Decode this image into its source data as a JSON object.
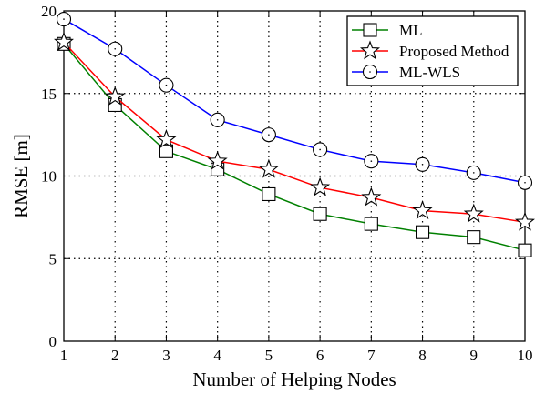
{
  "chart_data": {
    "type": "line",
    "title": "",
    "xlabel": "Number of Helping Nodes",
    "ylabel": "RMSE [m]",
    "xlim": [
      1,
      10
    ],
    "ylim": [
      0,
      20
    ],
    "xticks": [
      "1",
      "2",
      "3",
      "4",
      "5",
      "6",
      "7",
      "8",
      "9",
      "10"
    ],
    "yticks": [
      "0",
      "5",
      "10",
      "15",
      "20"
    ],
    "grid": true,
    "legend_position": "top-right",
    "x": [
      1,
      2,
      3,
      4,
      5,
      6,
      7,
      8,
      9,
      10
    ],
    "series": [
      {
        "name": "ML",
        "color": "#008000",
        "marker": "square",
        "values": [
          18.0,
          14.3,
          11.5,
          10.4,
          8.9,
          7.7,
          7.1,
          6.6,
          6.3,
          5.5
        ]
      },
      {
        "name": "Proposed Method",
        "color": "#ff0000",
        "marker": "star",
        "values": [
          18.1,
          14.8,
          12.2,
          10.9,
          10.4,
          9.3,
          8.7,
          7.9,
          7.7,
          7.2
        ]
      },
      {
        "name": "ML-WLS",
        "color": "#0000ff",
        "marker": "circle",
        "values": [
          19.5,
          17.7,
          15.5,
          13.4,
          12.5,
          11.6,
          10.9,
          10.7,
          10.2,
          9.6
        ]
      }
    ]
  }
}
